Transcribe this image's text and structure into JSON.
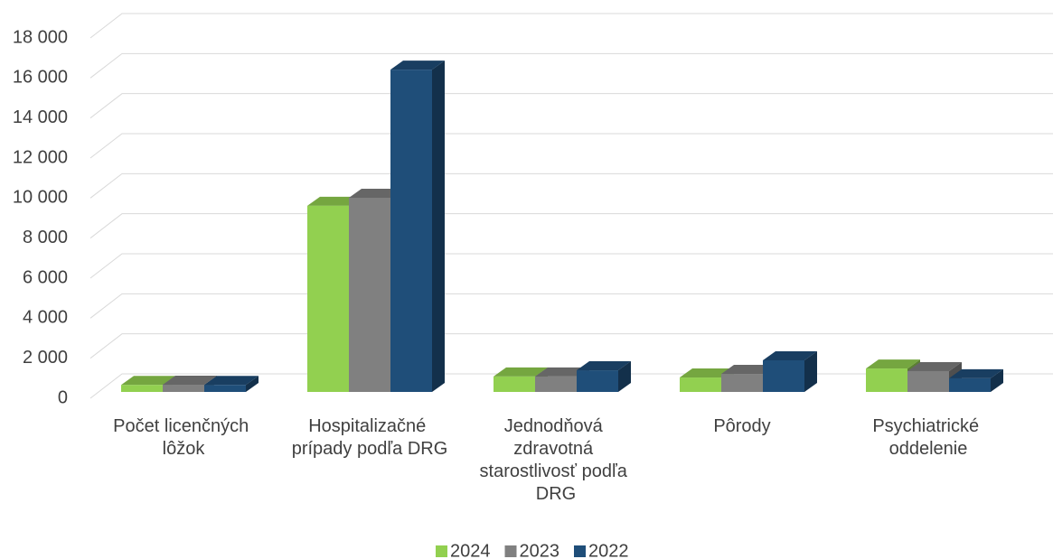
{
  "chart_data": {
    "type": "bar3d",
    "categories": [
      "Počet licenčných lôžok",
      "Hospitalizačné prípady podľa DRG",
      "Jednodňová zdravotná starostlivosť podľa DRG",
      "Pôrody",
      "Psychiatrické oddelenie"
    ],
    "series": [
      {
        "name": "2024",
        "color": "#92d050",
        "values": [
          350,
          9300,
          770,
          720,
          1170
        ]
      },
      {
        "name": "2023",
        "color": "#808080",
        "values": [
          360,
          9700,
          770,
          900,
          1040
        ]
      },
      {
        "name": "2022",
        "color": "#1f4e79",
        "values": [
          350,
          16100,
          1080,
          1580,
          680
        ]
      }
    ],
    "ylim": [
      0,
      18000
    ],
    "yticks": [
      0,
      {
        "value": 2000,
        "label": "2 000"
      },
      {
        "value": 4000,
        "label": "4 000"
      },
      {
        "value": 6000,
        "label": "6 000"
      },
      {
        "value": 8000,
        "label": "8 000"
      },
      {
        "value": 10000,
        "label": "10 000"
      },
      {
        "value": 12000,
        "label": "12 000"
      },
      {
        "value": 14000,
        "label": "14 000"
      },
      {
        "value": 16000,
        "label": "16 000"
      },
      {
        "value": 18000,
        "label": "18 000"
      }
    ],
    "grid": true,
    "legend": "bottom"
  }
}
